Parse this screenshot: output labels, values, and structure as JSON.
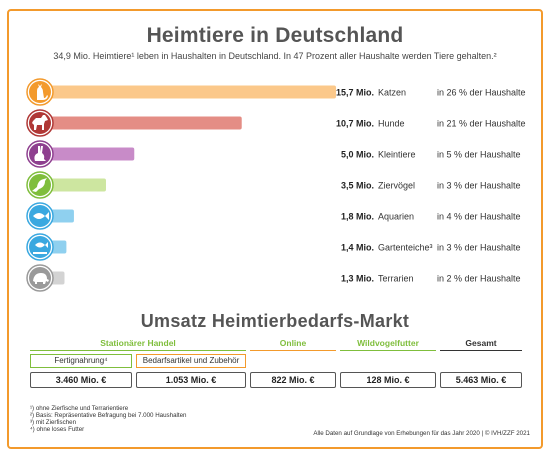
{
  "header": {
    "title": "Heimtiere in Deutschland",
    "subtitle": "34,9 Mio. Heimtiere¹ leben in Haushalten in Deutschland. In 47 Prozent aller Haushalte werden Tiere gehalten.²"
  },
  "chart_data": {
    "type": "bar",
    "orientation": "horizontal",
    "unit": "Mio.",
    "categories": [
      "Katzen",
      "Hunde",
      "Kleintiere",
      "Ziervögel",
      "Aquarien",
      "Gartenteiche³",
      "Terrarien"
    ],
    "value_labels": [
      "15,7 Mio.",
      "10,7 Mio.",
      "5,0 Mio.",
      "3,5 Mio.",
      "1,8 Mio.",
      "1,4 Mio.",
      "1,3 Mio."
    ],
    "values": [
      15.7,
      10.7,
      5.0,
      3.5,
      1.8,
      1.4,
      1.3
    ],
    "household_share_labels": [
      "in 26 % der Haushalte",
      "in 21 % der Haushalte",
      "in 5 % der Haushalte",
      "in 3 % der Haushalte",
      "in 4 % der Haushalte",
      "in 3 % der Haushalte",
      "in 2 % der Haushalte"
    ],
    "household_share": [
      26,
      21,
      5,
      3,
      4,
      3,
      2
    ],
    "bar_colors": [
      "#fbc88a",
      "#e48d85",
      "#c88bc8",
      "#cde6a0",
      "#8fd0ef",
      "#8fd0ef",
      "#d3d3d3"
    ],
    "icon_colors": [
      "#f39a2c",
      "#b03836",
      "#8e3f8f",
      "#7fbe3c",
      "#3aa8e0",
      "#3aa8e0",
      "#9a9a9a"
    ],
    "icons": [
      "cat-icon",
      "dog-icon",
      "rabbit-icon",
      "bird-icon",
      "fish-icon",
      "pond-fish-icon",
      "turtle-icon"
    ],
    "grid": false,
    "legend": "none"
  },
  "market": {
    "title": "Umsatz Heimtierbedarfs-Markt",
    "columns": {
      "stationary": "Stationärer Handel",
      "online": "Online",
      "wild_bird": "Wildvogelfutter",
      "total": "Gesamt"
    },
    "sub_columns": [
      "Fertignahrung⁴",
      "Bedarfsartikel und Zubehör"
    ],
    "values": [
      "3.460 Mio. €",
      "1.053 Mio. €",
      "822 Mio. €",
      "128 Mio. €",
      "5.463 Mio. €"
    ]
  },
  "footnotes": [
    "¹) ohne Zierfische und Terrarientiere",
    "²) Basis: Repräsentative Befragung bei 7.000 Haushalten",
    "³) mit Zierfischen",
    "⁴) ohne loses Futter"
  ],
  "source": "Alle Daten auf Grundlage von Erhebungen für das Jahr 2020 | © IVH/ZZF 2021",
  "colors": {
    "accent": "#f39a2c",
    "green": "#7fbe3c",
    "text": "#333333"
  }
}
